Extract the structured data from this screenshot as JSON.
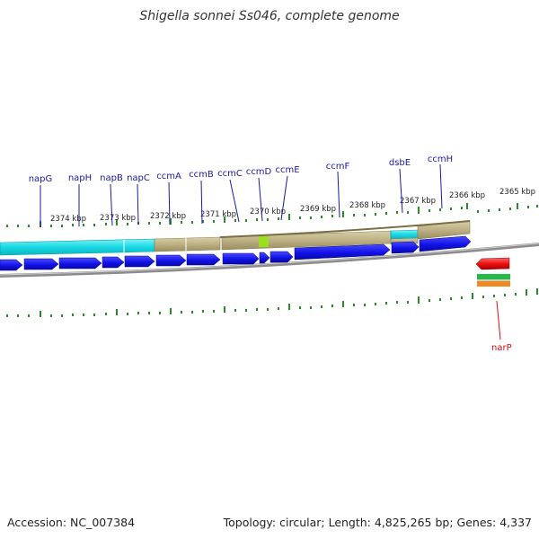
{
  "title": "Shigella sonnei Ss046, complete genome",
  "footer": {
    "accession": "Accession: NC_007384",
    "summary": "Topology: circular; Length: 4,825,265 bp; Genes: 4,337"
  },
  "colors": {
    "gene_label": "#1a1aa0",
    "gene_arrow": "#1010e8",
    "cyan_track": "#16d6e0",
    "tan_track": "#b8ac7c",
    "green_highlight": "#9be020",
    "tick": "#2a8a2a",
    "backbone": "#8c8c8c",
    "narP_label": "#cc1111"
  },
  "genes_top": [
    {
      "name": "napG"
    },
    {
      "name": "napH"
    },
    {
      "name": "napB"
    },
    {
      "name": "napC"
    },
    {
      "name": "ccmA"
    },
    {
      "name": "ccmB"
    },
    {
      "name": "ccmC"
    },
    {
      "name": "ccmD"
    },
    {
      "name": "ccmE"
    },
    {
      "name": "ccmF"
    },
    {
      "name": "dsbE"
    },
    {
      "name": "ccmH"
    }
  ],
  "gene_bottom": {
    "name": "narP"
  },
  "kbp_ticks": [
    "2374 kbp",
    "2373 kbp",
    "2372 kbp",
    "2371 kbp",
    "2370 kbp",
    "2369 kbp",
    "2368 kbp",
    "2367 kbp",
    "2366 kbp",
    "2365 kbp"
  ]
}
